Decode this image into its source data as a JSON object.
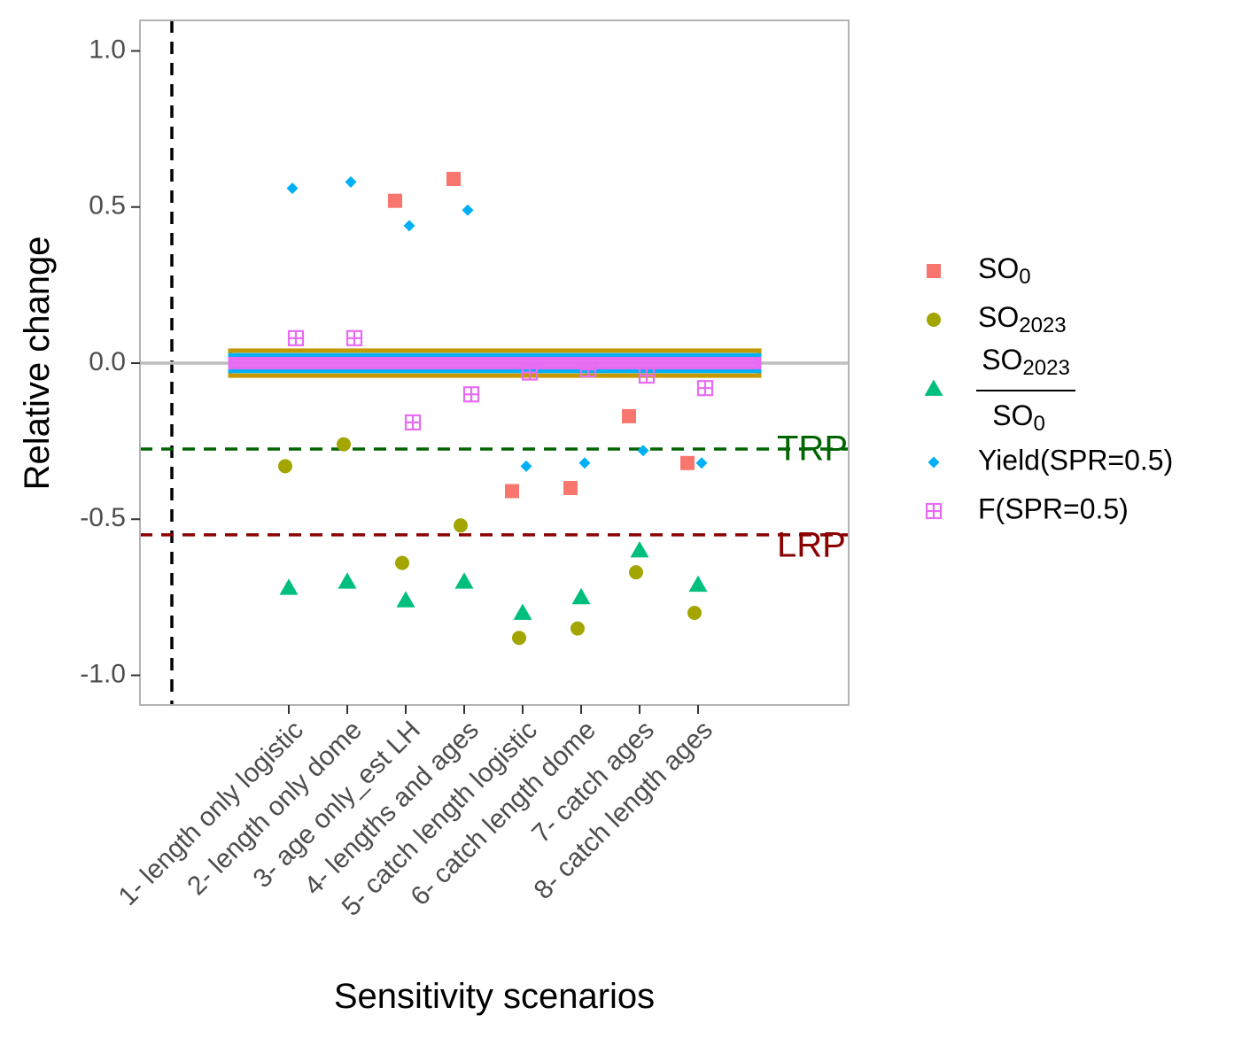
{
  "chart_data": {
    "type": "scatter",
    "xlabel": "Sensitivity scenarios",
    "ylabel": "Relative change",
    "ylim": [
      -1.1,
      1.1
    ],
    "y_ticks": [
      1.0,
      0.5,
      0.0,
      -0.5,
      -1.0
    ],
    "y_tick_labels": [
      "1.0",
      "0.5",
      "0.0",
      "-0.5",
      "-1.0"
    ],
    "grid": false,
    "legend_position": "right",
    "categories": [
      "1- length only logistic",
      "2- length only dome",
      "3- age only_est LH",
      "4- lengths and ages",
      "5- catch length logistic",
      "6- catch length dome",
      "7- catch ages",
      "8- catch length ages"
    ],
    "series": [
      {
        "name": "SO0",
        "legend_main": "SO",
        "legend_sub": "0",
        "shape": "square",
        "color": "#F8766D",
        "values": [
          null,
          null,
          0.52,
          0.59,
          -0.41,
          -0.4,
          -0.17,
          -0.32
        ]
      },
      {
        "name": "SO2023",
        "legend_main": "SO",
        "legend_sub": "2023",
        "shape": "circle",
        "color": "#A3A500",
        "values": [
          -0.33,
          -0.26,
          -0.64,
          -0.52,
          -0.88,
          -0.85,
          -0.67,
          -0.8
        ]
      },
      {
        "name": "SO2023/SO0",
        "legend_num_main": "SO",
        "legend_num_sub": "2023",
        "legend_den_main": "SO",
        "legend_den_sub": "0",
        "shape": "triangle",
        "color": "#00BF7D",
        "values": [
          -0.72,
          -0.7,
          -0.76,
          -0.7,
          -0.8,
          -0.75,
          -0.6,
          -0.71
        ]
      },
      {
        "name": "Yield(SPR=0.5)",
        "shape": "diamond",
        "color": "#00B0F6",
        "values": [
          0.56,
          0.58,
          0.44,
          0.49,
          -0.33,
          -0.32,
          -0.28,
          -0.32
        ]
      },
      {
        "name": "F(SPR=0.5)",
        "shape": "boxplus",
        "color": "#E76BF3",
        "values": [
          0.08,
          0.08,
          -0.19,
          -0.1,
          -0.03,
          -0.02,
          -0.04,
          -0.08
        ]
      }
    ],
    "reference_lines": [
      {
        "label": "TRP",
        "value": -0.275,
        "color": "#006400"
      },
      {
        "label": "LRP",
        "value": -0.55,
        "color": "#8B0000"
      }
    ],
    "zero_line": {
      "value": 0.0,
      "color": "#BEBEBE"
    },
    "base_band": {
      "bands": [
        0.04,
        0.025,
        0.013
      ],
      "colors": [
        "#C49A00",
        "#00B0F6",
        "#E76BF3"
      ]
    }
  }
}
